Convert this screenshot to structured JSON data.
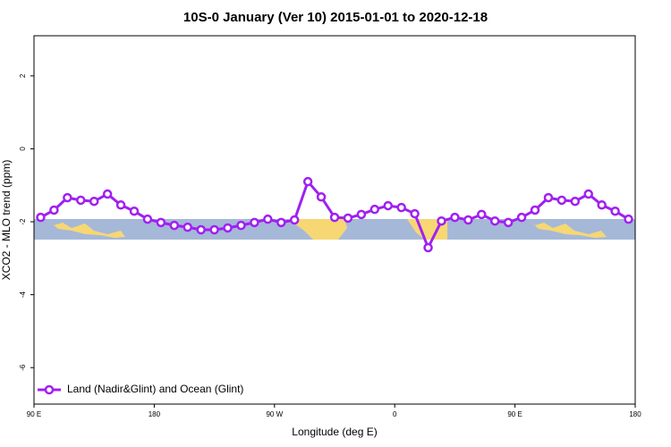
{
  "chart_data": {
    "type": "line",
    "title": "10S-0 January (Ver 10)   2015-01-01 to 2020-12-18",
    "x_label": "Longitude (deg E)",
    "y_label": "XCO2 - MLO trend (ppm)",
    "xlim": [
      90,
      540
    ],
    "ylim": [
      -7,
      3.1
    ],
    "xticks": [
      {
        "value": 90,
        "label": "90 E"
      },
      180,
      {
        "value": 270,
        "label": "90 W"
      },
      {
        "value": 360,
        "label": "0"
      },
      {
        "value": 450,
        "label": "90 E"
      },
      {
        "value": 540,
        "label": "180"
      }
    ],
    "yticks": [
      2,
      0,
      -2,
      -4,
      -6
    ],
    "legend": "bottom-left",
    "series": [
      {
        "name": "Land (Nadir&Glint) and Ocean (Glint)",
        "color": "#a020f0",
        "x": [
          95,
          105,
          115,
          125,
          135,
          145,
          155,
          165,
          175,
          185,
          195,
          205,
          215,
          225,
          235,
          245,
          255,
          265,
          275,
          285,
          295,
          305,
          315,
          325,
          335,
          345,
          355,
          365,
          375,
          385,
          395,
          405,
          415,
          425,
          435,
          445,
          455,
          465,
          475,
          485,
          495,
          505,
          515,
          525,
          535
        ],
        "values": [
          -1.88,
          -1.68,
          -1.34,
          -1.41,
          -1.44,
          -1.24,
          -1.54,
          -1.71,
          -1.93,
          -2.02,
          -2.1,
          -2.15,
          -2.22,
          -2.22,
          -2.17,
          -2.1,
          -2.02,
          -1.93,
          -2.02,
          -1.95,
          -0.9,
          -1.32,
          -1.88,
          -1.9,
          -1.8,
          -1.66,
          -1.56,
          -1.61,
          -1.78,
          -2.71,
          -1.98,
          -1.88,
          -1.95,
          -1.8,
          -1.98,
          -2.02,
          -1.88,
          -1.68,
          -1.34,
          -1.41,
          -1.44,
          -1.24,
          -1.54,
          -1.71,
          -1.93
        ]
      }
    ]
  }
}
